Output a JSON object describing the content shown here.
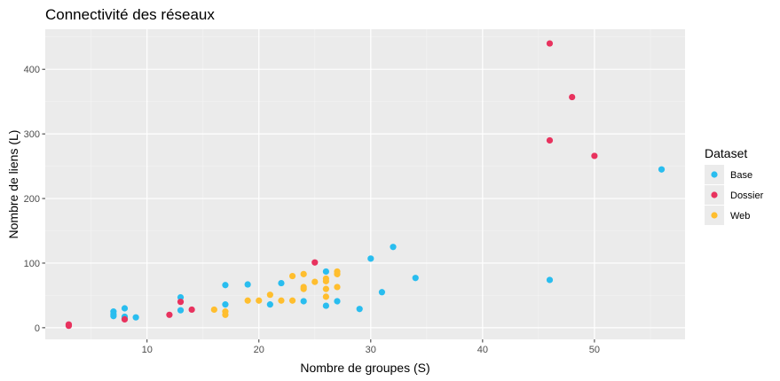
{
  "chart_data": {
    "type": "scatter",
    "title": "Connectivité des réseaux",
    "xlabel": "Nombre de groupes (S)",
    "ylabel": "Nombre de liens (L)",
    "xlim": [
      0.9,
      58.1
    ],
    "ylim": [
      -18,
      462
    ],
    "xticks": [
      10,
      20,
      30,
      40,
      50
    ],
    "yticks": [
      0,
      100,
      200,
      300,
      400
    ],
    "grid": true,
    "legend": {
      "title": "Dataset",
      "placement": "right"
    },
    "series": [
      {
        "name": "Base",
        "color": "#29BDEF",
        "points": [
          {
            "x": 7,
            "y": 25
          },
          {
            "x": 7,
            "y": 21
          },
          {
            "x": 7,
            "y": 18
          },
          {
            "x": 8,
            "y": 30
          },
          {
            "x": 8,
            "y": 17
          },
          {
            "x": 8,
            "y": 14
          },
          {
            "x": 9,
            "y": 16
          },
          {
            "x": 13,
            "y": 47
          },
          {
            "x": 13,
            "y": 27
          },
          {
            "x": 17,
            "y": 66
          },
          {
            "x": 17,
            "y": 36
          },
          {
            "x": 19,
            "y": 67
          },
          {
            "x": 21,
            "y": 36
          },
          {
            "x": 22,
            "y": 69
          },
          {
            "x": 24,
            "y": 41
          },
          {
            "x": 26,
            "y": 87
          },
          {
            "x": 26,
            "y": 34
          },
          {
            "x": 27,
            "y": 41
          },
          {
            "x": 29,
            "y": 29
          },
          {
            "x": 30,
            "y": 107
          },
          {
            "x": 31,
            "y": 55
          },
          {
            "x": 32,
            "y": 125
          },
          {
            "x": 34,
            "y": 77
          },
          {
            "x": 46,
            "y": 74
          },
          {
            "x": 56,
            "y": 245
          }
        ]
      },
      {
        "name": "Dossier",
        "color": "#E8325E",
        "points": [
          {
            "x": 3,
            "y": 5
          },
          {
            "x": 3,
            "y": 3
          },
          {
            "x": 8,
            "y": 13
          },
          {
            "x": 12,
            "y": 20
          },
          {
            "x": 13,
            "y": 40
          },
          {
            "x": 14,
            "y": 28
          },
          {
            "x": 25,
            "y": 101
          },
          {
            "x": 46,
            "y": 440
          },
          {
            "x": 46,
            "y": 290
          },
          {
            "x": 48,
            "y": 357
          },
          {
            "x": 50,
            "y": 266
          }
        ]
      },
      {
        "name": "Web",
        "color": "#FFBE2E",
        "points": [
          {
            "x": 16,
            "y": 28
          },
          {
            "x": 17,
            "y": 25
          },
          {
            "x": 17,
            "y": 20
          },
          {
            "x": 19,
            "y": 42
          },
          {
            "x": 20,
            "y": 42
          },
          {
            "x": 21,
            "y": 51
          },
          {
            "x": 22,
            "y": 42
          },
          {
            "x": 23,
            "y": 80
          },
          {
            "x": 23,
            "y": 42
          },
          {
            "x": 24,
            "y": 83
          },
          {
            "x": 24,
            "y": 63
          },
          {
            "x": 24,
            "y": 60
          },
          {
            "x": 25,
            "y": 71
          },
          {
            "x": 26,
            "y": 76
          },
          {
            "x": 26,
            "y": 72
          },
          {
            "x": 26,
            "y": 60
          },
          {
            "x": 26,
            "y": 48
          },
          {
            "x": 27,
            "y": 87
          },
          {
            "x": 27,
            "y": 83
          },
          {
            "x": 27,
            "y": 63
          }
        ]
      }
    ]
  }
}
